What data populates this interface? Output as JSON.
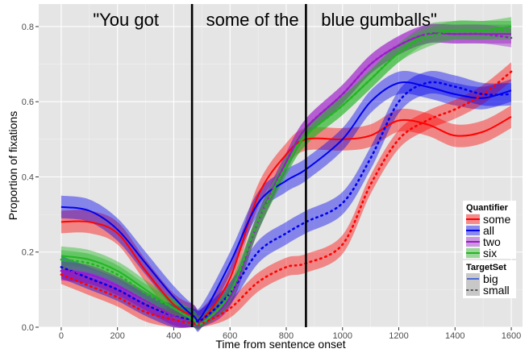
{
  "chart_data": {
    "type": "line",
    "xlabel": "Time from sentence onset",
    "ylabel": "Proportion of fixations",
    "xlim": [
      -80,
      1640
    ],
    "ylim": [
      0,
      0.86
    ],
    "x_ticks": [
      0,
      200,
      400,
      600,
      800,
      1000,
      1200,
      1400,
      1600
    ],
    "y_ticks": [
      0.0,
      0.2,
      0.4,
      0.6,
      0.8
    ],
    "y_tick_labels": [
      "0.0",
      "0.2",
      "0.4",
      "0.6",
      "0.8"
    ],
    "grid": true,
    "background": "#e5e5e5",
    "phrases": [
      {
        "text": "\"You got",
        "x": 230
      },
      {
        "text": "some of the",
        "x": 680
      },
      {
        "text": "blue  gumballs\"",
        "x": 1130
      }
    ],
    "vlines": [
      465,
      870
    ],
    "colors": {
      "some": "#ff0000",
      "all": "#0000ee",
      "two": "#9a1ac9",
      "six": "#22b522"
    },
    "legend": {
      "position": "right",
      "quantifier_title": "Quantifier",
      "quantifier": [
        "some",
        "all",
        "two",
        "six"
      ],
      "targetset_title": "TargetSet",
      "targetset": [
        "big",
        "small"
      ]
    },
    "x": [
      0,
      100,
      200,
      300,
      400,
      470,
      500,
      600,
      700,
      800,
      870,
      1000,
      1100,
      1200,
      1300,
      1400,
      1500,
      1600
    ],
    "series": [
      {
        "quantifier": "some",
        "targetset": "big",
        "band": 0.03,
        "values": [
          0.28,
          0.28,
          0.25,
          0.15,
          0.06,
          0.03,
          0.02,
          0.13,
          0.35,
          0.46,
          0.5,
          0.5,
          0.51,
          0.55,
          0.54,
          0.51,
          0.52,
          0.56
        ]
      },
      {
        "quantifier": "all",
        "targetset": "big",
        "band": 0.03,
        "values": [
          0.32,
          0.31,
          0.26,
          0.17,
          0.08,
          0.03,
          0.03,
          0.17,
          0.33,
          0.39,
          0.42,
          0.5,
          0.6,
          0.65,
          0.64,
          0.62,
          0.61,
          0.63
        ]
      },
      {
        "quantifier": "two",
        "targetset": "big",
        "band": 0.025,
        "values": [
          0.15,
          0.14,
          0.11,
          0.07,
          0.03,
          0.01,
          0.01,
          0.08,
          0.28,
          0.44,
          0.53,
          0.62,
          0.7,
          0.75,
          0.78,
          0.78,
          0.78,
          0.78
        ]
      },
      {
        "quantifier": "six",
        "targetset": "big",
        "band": 0.025,
        "values": [
          0.19,
          0.18,
          0.15,
          0.1,
          0.05,
          0.02,
          0.01,
          0.09,
          0.28,
          0.43,
          0.51,
          0.59,
          0.66,
          0.73,
          0.78,
          0.79,
          0.79,
          0.8
        ]
      },
      {
        "quantifier": "some",
        "targetset": "small",
        "band": 0.025,
        "values": [
          0.14,
          0.11,
          0.08,
          0.04,
          0.02,
          0.01,
          0.01,
          0.05,
          0.12,
          0.16,
          0.17,
          0.22,
          0.38,
          0.5,
          0.55,
          0.58,
          0.62,
          0.68
        ]
      },
      {
        "quantifier": "all",
        "targetset": "small",
        "band": 0.03,
        "values": [
          0.16,
          0.13,
          0.1,
          0.06,
          0.03,
          0.02,
          0.02,
          0.09,
          0.2,
          0.25,
          0.28,
          0.33,
          0.45,
          0.6,
          0.65,
          0.64,
          0.62,
          0.62
        ]
      },
      {
        "quantifier": "two",
        "targetset": "small",
        "band": 0.025,
        "values": [
          0.15,
          0.14,
          0.11,
          0.07,
          0.03,
          0.01,
          0.01,
          0.08,
          0.28,
          0.44,
          0.53,
          0.62,
          0.7,
          0.75,
          0.78,
          0.78,
          0.78,
          0.77
        ]
      },
      {
        "quantifier": "six",
        "targetset": "small",
        "band": 0.025,
        "values": [
          0.18,
          0.17,
          0.14,
          0.09,
          0.05,
          0.02,
          0.01,
          0.09,
          0.28,
          0.43,
          0.51,
          0.59,
          0.66,
          0.73,
          0.77,
          0.79,
          0.79,
          0.79
        ]
      }
    ]
  }
}
